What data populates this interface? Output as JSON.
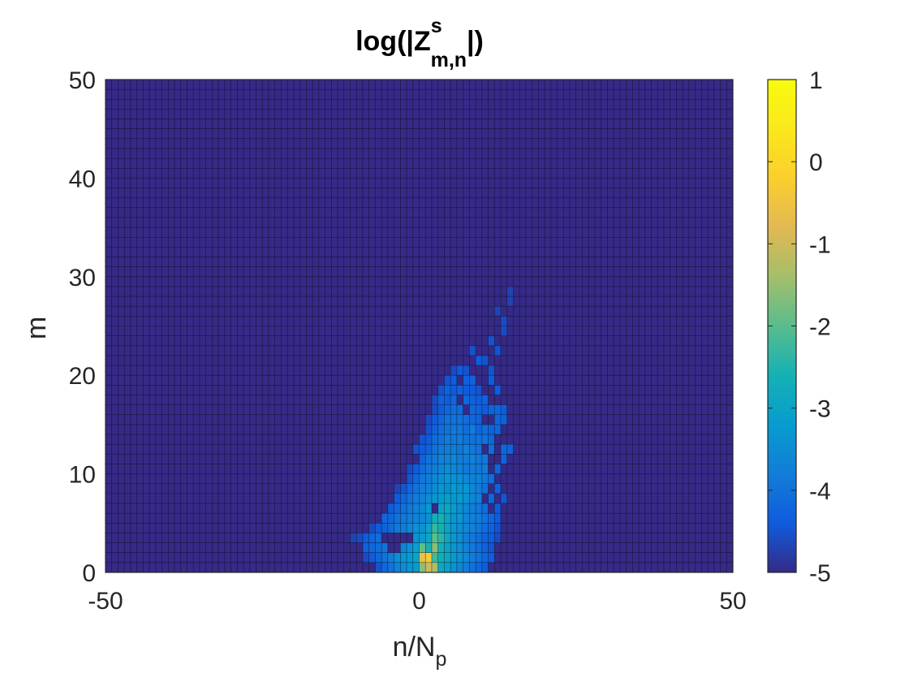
{
  "chart_data": {
    "type": "heatmap",
    "title": {
      "prefix": "log(|Z",
      "superscript": "s",
      "subscript": "m,n",
      "suffix": "|)"
    },
    "xlabel": {
      "base": "n/N",
      "subscript": "p"
    },
    "ylabel": "m",
    "xlim": [
      -50,
      50
    ],
    "ylim": [
      0,
      50
    ],
    "xticks": [
      "-50",
      "0",
      "50"
    ],
    "yticks": [
      "0",
      "10",
      "20",
      "30",
      "40",
      "50"
    ],
    "grid_x": [
      -50,
      50
    ],
    "grid_y": [
      0,
      50
    ],
    "clim": [
      -5,
      1
    ],
    "colorbar_ticks": [
      "-5",
      "-4",
      "-3",
      "-2",
      "-1",
      "0",
      "1"
    ],
    "colormap": "parula",
    "background_value": -5,
    "legend": "colorbar-right",
    "grid": true,
    "cells": [
      [
        0,
        0,
        -1.6
      ],
      [
        0,
        1,
        -0.6
      ],
      [
        1,
        0,
        -1.0
      ],
      [
        1,
        1,
        -0.3
      ],
      [
        2,
        0,
        -1.3
      ],
      [
        2,
        1,
        -2.2
      ],
      [
        -1,
        0,
        -3.2
      ],
      [
        -1,
        1,
        -3.0
      ],
      [
        -2,
        0,
        -3.3
      ],
      [
        -2,
        1,
        -3.2
      ],
      [
        -3,
        0,
        -3.5
      ],
      [
        -3,
        1,
        -3.3
      ],
      [
        -4,
        0,
        -3.7
      ],
      [
        -4,
        1,
        -3.5
      ],
      [
        -5,
        0,
        -4.0
      ],
      [
        -5,
        1,
        -3.8
      ],
      [
        3,
        0,
        -2.9
      ],
      [
        3,
        1,
        -2.7
      ],
      [
        4,
        0,
        -3.1
      ],
      [
        4,
        1,
        -2.9
      ],
      [
        5,
        0,
        -3.4
      ],
      [
        5,
        1,
        -3.2
      ],
      [
        6,
        0,
        -3.6
      ],
      [
        6,
        1,
        -3.4
      ],
      [
        7,
        0,
        -3.8
      ],
      [
        7,
        1,
        -3.6
      ],
      [
        8,
        0,
        -4.0
      ],
      [
        8,
        1,
        -3.8
      ],
      [
        -1,
        2,
        -3.1
      ],
      [
        0,
        2,
        -1.9
      ],
      [
        1,
        2,
        -2.6
      ],
      [
        2,
        2,
        -1.6
      ],
      [
        3,
        2,
        -2.7
      ],
      [
        -2,
        2,
        -3.4
      ],
      [
        -3,
        2,
        -3.7
      ],
      [
        4,
        2,
        -3.0
      ],
      [
        5,
        2,
        -3.3
      ],
      [
        6,
        2,
        -3.5
      ],
      [
        7,
        2,
        -3.7
      ],
      [
        -6,
        2,
        -4.0
      ],
      [
        0,
        3,
        -3.2
      ],
      [
        1,
        3,
        -2.9
      ],
      [
        2,
        3,
        -2.0
      ],
      [
        3,
        3,
        -2.4
      ],
      [
        4,
        3,
        -2.9
      ],
      [
        -1,
        3,
        -3.4
      ],
      [
        5,
        3,
        -3.3
      ],
      [
        6,
        3,
        -3.5
      ],
      [
        7,
        3,
        -3.8
      ],
      [
        1,
        4,
        -3.0
      ],
      [
        2,
        4,
        -2.3
      ],
      [
        3,
        4,
        -2.6
      ],
      [
        4,
        4,
        -3.0
      ],
      [
        5,
        4,
        -3.3
      ],
      [
        6,
        4,
        -3.5
      ],
      [
        2,
        5,
        -2.7
      ],
      [
        3,
        5,
        -2.6
      ],
      [
        4,
        5,
        -3.0
      ],
      [
        5,
        5,
        -3.3
      ],
      [
        6,
        5,
        -3.3
      ],
      [
        7,
        5,
        -3.6
      ],
      [
        1,
        6,
        -3.2
      ],
      [
        3,
        6,
        -3.0
      ],
      [
        4,
        6,
        -2.9
      ],
      [
        5,
        6,
        -3.2
      ],
      [
        6,
        6,
        -3.5
      ],
      [
        2,
        7,
        -3.3
      ],
      [
        3,
        7,
        -3.2
      ],
      [
        4,
        7,
        -3.1
      ],
      [
        5,
        7,
        -3.3
      ],
      [
        6,
        7,
        -3.2
      ],
      [
        7,
        7,
        -3.4
      ],
      [
        3,
        8,
        -3.3
      ],
      [
        4,
        8,
        -3.5
      ],
      [
        5,
        8,
        -3.2
      ],
      [
        6,
        8,
        -3.4
      ],
      [
        7,
        8,
        -3.3
      ],
      [
        8,
        8,
        -3.6
      ],
      [
        3,
        9,
        -3.5
      ],
      [
        4,
        9,
        -3.3
      ],
      [
        5,
        9,
        -3.4
      ],
      [
        6,
        9,
        -3.5
      ],
      [
        7,
        9,
        -3.6
      ],
      [
        4,
        10,
        -3.5
      ],
      [
        5,
        10,
        -3.6
      ],
      [
        6,
        10,
        -3.7
      ],
      [
        7,
        10,
        -3.9
      ],
      [
        4,
        11,
        -3.7
      ],
      [
        5,
        11,
        -3.6
      ],
      [
        6,
        11,
        -3.8
      ],
      [
        8,
        11,
        -3.7
      ],
      [
        5,
        12,
        -3.8
      ],
      [
        6,
        12,
        -3.9
      ],
      [
        7,
        12,
        -3.7
      ],
      [
        5,
        13,
        -3.9
      ],
      [
        6,
        13,
        -3.8
      ],
      [
        7,
        13,
        -4.0
      ],
      [
        6,
        14,
        -3.9
      ],
      [
        7,
        14,
        -4.1
      ],
      [
        8,
        14,
        -3.8
      ],
      [
        6,
        15,
        -4.0
      ],
      [
        7,
        15,
        -4.1
      ],
      [
        6,
        16,
        -4.1
      ],
      [
        8,
        16,
        -4.2
      ],
      [
        7,
        17,
        -4.2
      ],
      [
        8,
        19,
        -4.3
      ],
      [
        9,
        21,
        -4.4
      ],
      [
        11,
        23,
        -4.5
      ],
      [
        13,
        25,
        -4.6
      ],
      [
        14,
        28,
        -4.7
      ],
      [
        -9,
        2,
        -4.3
      ],
      [
        -8,
        3,
        -4.2
      ],
      [
        -7,
        3,
        -4.1
      ],
      [
        -6,
        4,
        -4.3
      ],
      [
        -5,
        4,
        -4.1
      ],
      [
        -4,
        4,
        -3.9
      ],
      [
        -3,
        4,
        -3.8
      ],
      [
        -2,
        4,
        -3.6
      ],
      [
        -1,
        4,
        -3.4
      ],
      [
        0,
        4,
        -3.4
      ],
      [
        -6,
        5,
        -4.2
      ],
      [
        -4,
        5,
        -4.0
      ],
      [
        -2,
        5,
        -3.8
      ],
      [
        0,
        5,
        -3.6
      ],
      [
        1,
        5,
        -3.4
      ],
      [
        -4,
        6,
        -4.2
      ],
      [
        -3,
        6,
        -4.0
      ],
      [
        -2,
        6,
        -3.9
      ],
      [
        -1,
        6,
        -3.7
      ],
      [
        0,
        6,
        -3.6
      ],
      [
        -2,
        7,
        -4.0
      ],
      [
        -1,
        7,
        -3.8
      ],
      [
        0,
        7,
        -3.7
      ],
      [
        1,
        7,
        -3.5
      ],
      [
        -1,
        8,
        -4.0
      ],
      [
        0,
        8,
        -3.8
      ],
      [
        1,
        8,
        -3.7
      ],
      [
        2,
        8,
        -3.5
      ],
      [
        0,
        9,
        -3.9
      ],
      [
        1,
        9,
        -3.8
      ],
      [
        2,
        9,
        -3.6
      ],
      [
        0,
        10,
        -4.1
      ],
      [
        1,
        10,
        -3.9
      ],
      [
        2,
        10,
        -3.8
      ],
      [
        3,
        10,
        -3.6
      ],
      [
        1,
        11,
        -4.0
      ],
      [
        2,
        11,
        -3.9
      ],
      [
        3,
        11,
        -3.7
      ],
      [
        2,
        12,
        -4.0
      ],
      [
        3,
        12,
        -3.9
      ],
      [
        4,
        12,
        -3.8
      ],
      [
        2,
        13,
        -4.1
      ],
      [
        3,
        13,
        -4.0
      ],
      [
        4,
        13,
        -3.8
      ],
      [
        3,
        14,
        -4.1
      ],
      [
        4,
        14,
        -4.0
      ],
      [
        5,
        14,
        -3.9
      ],
      [
        3,
        15,
        -4.2
      ],
      [
        4,
        15,
        -4.0
      ],
      [
        5,
        15,
        -4.0
      ],
      [
        4,
        16,
        -4.2
      ],
      [
        5,
        16,
        -4.1
      ],
      [
        3,
        17,
        -4.3
      ],
      [
        5,
        17,
        -4.2
      ],
      [
        4,
        18,
        -4.3
      ],
      [
        6,
        18,
        -4.3
      ],
      [
        5,
        19,
        -4.4
      ],
      [
        7,
        19,
        -4.3
      ],
      [
        6,
        20,
        -4.4
      ],
      [
        8,
        22,
        -4.5
      ],
      [
        9,
        7,
        -3.7
      ],
      [
        9,
        8,
        -3.8
      ],
      [
        9,
        9,
        -3.7
      ],
      [
        10,
        9,
        -3.9
      ],
      [
        9,
        10,
        -3.9
      ],
      [
        10,
        10,
        -3.8
      ],
      [
        8,
        10,
        -3.8
      ],
      [
        10,
        11,
        -3.9
      ],
      [
        9,
        12,
        -4.0
      ],
      [
        11,
        12,
        -4.1
      ],
      [
        9,
        13,
        -4.0
      ],
      [
        10,
        13,
        -4.0
      ],
      [
        11,
        13,
        -4.2
      ],
      [
        12,
        14,
        -4.2
      ],
      [
        10,
        14,
        -4.1
      ],
      [
        12,
        15,
        -4.2
      ],
      [
        13,
        15,
        -4.3
      ],
      [
        11,
        16,
        -4.3
      ],
      [
        12,
        16,
        -4.2
      ],
      [
        13,
        16,
        -4.4
      ],
      [
        10,
        17,
        -4.3
      ],
      [
        12,
        18,
        -4.4
      ],
      [
        11,
        19,
        -4.4
      ],
      [
        11,
        20,
        -4.5
      ],
      [
        10,
        21,
        -4.5
      ],
      [
        12,
        22,
        -4.5
      ],
      [
        13,
        24,
        -4.6
      ],
      [
        12,
        26,
        -4.7
      ],
      [
        14,
        27,
        -4.7
      ],
      [
        8,
        4,
        -3.7
      ],
      [
        9,
        4,
        -3.9
      ],
      [
        10,
        4,
        -4.1
      ],
      [
        9,
        5,
        -3.8
      ],
      [
        10,
        5,
        -4.0
      ],
      [
        11,
        5,
        -4.2
      ],
      [
        8,
        6,
        -3.8
      ],
      [
        9,
        6,
        -3.9
      ],
      [
        10,
        6,
        -4.1
      ],
      [
        11,
        7,
        -4.2
      ],
      [
        10,
        8,
        -4.0
      ],
      [
        12,
        8,
        -4.3
      ],
      [
        11,
        9,
        -4.1
      ],
      [
        12,
        10,
        -4.2
      ],
      [
        13,
        11,
        -4.3
      ],
      [
        14,
        12,
        -4.3
      ],
      [
        13,
        12,
        -4.2
      ],
      [
        -7,
        1,
        -4.2
      ],
      [
        -6,
        1,
        -4.0
      ],
      [
        -8,
        1,
        -4.4
      ],
      [
        -9,
        1,
        -4.6
      ],
      [
        -6,
        0,
        -4.2
      ],
      [
        -7,
        0,
        -4.5
      ],
      [
        9,
        0,
        -4.2
      ],
      [
        10,
        0,
        -4.4
      ],
      [
        9,
        1,
        -4.0
      ],
      [
        10,
        1,
        -4.2
      ],
      [
        11,
        1,
        -4.4
      ],
      [
        8,
        2,
        -3.9
      ],
      [
        9,
        2,
        -4.1
      ],
      [
        10,
        2,
        -4.3
      ],
      [
        11,
        2,
        -4.5
      ],
      [
        8,
        3,
        -3.9
      ],
      [
        9,
        3,
        -4.1
      ],
      [
        10,
        3,
        -4.3
      ],
      [
        11,
        3,
        -4.4
      ],
      [
        12,
        3,
        -4.6
      ],
      [
        11,
        4,
        -4.3
      ],
      [
        12,
        4,
        -4.5
      ],
      [
        12,
        5,
        -4.4
      ],
      [
        12,
        6,
        -4.4
      ],
      [
        13,
        7,
        -4.5
      ],
      [
        -10,
        3,
        -4.6
      ],
      [
        -11,
        3,
        -4.7
      ],
      [
        -8,
        2,
        -4.2
      ],
      [
        -7,
        2,
        -4.1
      ],
      [
        -9,
        3,
        -4.4
      ],
      [
        -7,
        4,
        -4.4
      ],
      [
        -8,
        4,
        -4.6
      ],
      [
        -5,
        5,
        -4.2
      ],
      [
        -3,
        5,
        -3.9
      ],
      [
        -1,
        5,
        -3.7
      ],
      [
        -5,
        6,
        -4.4
      ],
      [
        -3,
        7,
        -4.2
      ],
      [
        -4,
        7,
        -4.4
      ],
      [
        -2,
        8,
        -4.2
      ],
      [
        -1,
        9,
        -4.2
      ],
      [
        -1,
        10,
        -4.4
      ],
      [
        0,
        11,
        -4.3
      ],
      [
        1,
        12,
        -4.3
      ],
      [
        1,
        13,
        -4.4
      ],
      [
        2,
        14,
        -4.3
      ],
      [
        2,
        15,
        -4.4
      ],
      [
        3,
        16,
        -4.4
      ],
      [
        4,
        17,
        -4.4
      ],
      [
        3,
        18,
        -4.5
      ],
      [
        4,
        19,
        -4.5
      ],
      [
        5,
        18,
        -4.4
      ],
      [
        5,
        20,
        -4.6
      ],
      [
        7,
        18,
        -4.4
      ],
      [
        7,
        20,
        -4.5
      ],
      [
        8,
        18,
        -4.4
      ],
      [
        9,
        18,
        -4.5
      ],
      [
        8,
        17,
        -4.3
      ],
      [
        9,
        17,
        -4.4
      ],
      [
        9,
        16,
        -4.3
      ],
      [
        10,
        16,
        -4.4
      ],
      [
        8,
        15,
        -4.2
      ],
      [
        9,
        15,
        -4.3
      ],
      [
        9,
        14,
        -4.2
      ],
      [
        11,
        14,
        -4.3
      ],
      [
        8,
        13,
        -4.0
      ],
      [
        8,
        12,
        -3.9
      ],
      [
        9,
        11,
        -3.9
      ],
      [
        7,
        11,
        -3.8
      ],
      [
        8,
        9,
        -3.7
      ],
      [
        8,
        7,
        -3.6
      ],
      [
        8,
        5,
        -3.7
      ],
      [
        7,
        6,
        -3.6
      ],
      [
        7,
        4,
        -3.6
      ],
      [
        -1,
        12,
        -4.5
      ],
      [
        0,
        12,
        -4.4
      ],
      [
        0,
        13,
        -4.5
      ],
      [
        1,
        14,
        -4.5
      ],
      [
        1,
        15,
        -4.6
      ],
      [
        2,
        16,
        -4.6
      ],
      [
        2,
        17,
        -4.6
      ],
      [
        -2,
        9,
        -4.5
      ],
      [
        -2,
        10,
        -4.6
      ],
      [
        -3,
        8,
        -4.5
      ],
      [
        -4,
        8,
        -4.7
      ]
    ]
  }
}
